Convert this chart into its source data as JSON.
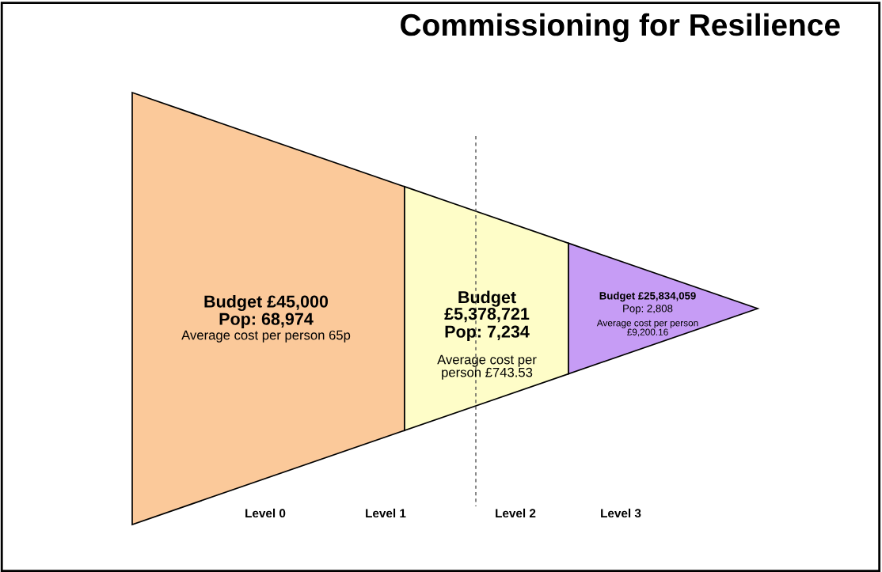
{
  "chart_data": {
    "type": "other",
    "title": "Commissioning for Resilience",
    "categories": [
      null,
      null,
      null
    ],
    "values": [
      68974,
      7234,
      2808
    ],
    "value_labels": [
      "Pop: 68,974",
      "Pop: 7,234",
      "Pop: 2,808"
    ],
    "colors": [
      "#fbc99a",
      "#fefdc8",
      "#c69cf5"
    ],
    "annotations": [
      "Level 0",
      "Level 1",
      "Level 2",
      "Level 3",
      "Budget £45,000",
      "Average cost per person 65p",
      "Budget\n£5,378,721",
      "Average cost per\nperson £743.53",
      "Budget £25,834,059",
      "Average cost per person\n£9,200.16"
    ],
    "ref_lines": [
      {
        "axis": "x",
        "line_style": "dashed",
        "color": "#555555"
      }
    ]
  }
}
